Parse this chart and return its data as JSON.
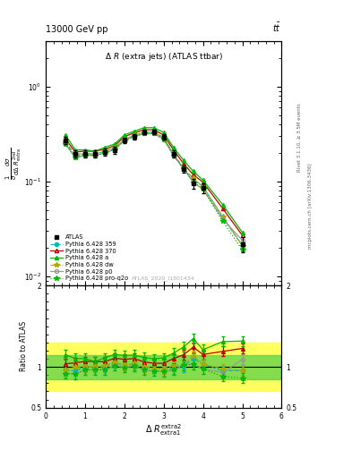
{
  "title_left": "13000 GeV pp",
  "title_right": "tt",
  "plot_title": "Δ R (extra jets) (ATLAS ttbar)",
  "watermark": "ATLAS_2020_I1801434",
  "ylabel_main": "$\\frac{1}{\\sigma}\\frac{d\\sigma}{d\\Delta R_{extra}^{2nd}}$",
  "ylabel_ratio": "Ratio to ATLAS",
  "xlabel": "$\\Delta\\ R^{\\mathrm{extra2}}_{\\mathrm{extra1}}$",
  "xlim": [
    0,
    6
  ],
  "ylim_main": [
    0.008,
    3.0
  ],
  "ylim_ratio": [
    0.5,
    2.0
  ],
  "x_data": [
    0.5,
    0.75,
    1.0,
    1.25,
    1.5,
    1.75,
    2.0,
    2.25,
    2.5,
    2.75,
    3.0,
    3.25,
    3.5,
    3.75,
    4.0,
    4.5,
    5.0
  ],
  "atlas_y": [
    0.27,
    0.195,
    0.195,
    0.195,
    0.205,
    0.215,
    0.27,
    0.295,
    0.33,
    0.335,
    0.295,
    0.195,
    0.135,
    0.095,
    0.085,
    null,
    0.022
  ],
  "atlas_yerr": [
    0.025,
    0.018,
    0.018,
    0.018,
    0.018,
    0.018,
    0.018,
    0.018,
    0.018,
    0.018,
    0.018,
    0.018,
    0.012,
    0.012,
    0.01,
    null,
    0.004
  ],
  "py359_y": [
    0.26,
    0.185,
    0.195,
    0.195,
    0.205,
    0.225,
    0.275,
    0.305,
    0.33,
    0.33,
    0.29,
    0.19,
    0.135,
    0.105,
    0.088,
    0.042,
    0.021
  ],
  "py370_y": [
    0.28,
    0.205,
    0.208,
    0.208,
    0.218,
    0.238,
    0.295,
    0.325,
    0.35,
    0.35,
    0.308,
    0.215,
    0.155,
    0.118,
    0.098,
    0.052,
    0.027
  ],
  "pya_y": [
    0.31,
    0.215,
    0.215,
    0.208,
    0.228,
    0.248,
    0.308,
    0.338,
    0.368,
    0.368,
    0.328,
    0.228,
    0.168,
    0.128,
    0.103,
    0.057,
    0.029
  ],
  "pydw_y": [
    0.26,
    0.195,
    0.195,
    0.195,
    0.208,
    0.228,
    0.275,
    0.308,
    0.33,
    0.33,
    0.288,
    0.198,
    0.138,
    0.108,
    0.088,
    0.043,
    0.021
  ],
  "pyp0_y": [
    0.248,
    0.178,
    0.188,
    0.188,
    0.198,
    0.218,
    0.268,
    0.298,
    0.318,
    0.318,
    0.278,
    0.188,
    0.138,
    0.098,
    0.083,
    0.04,
    0.024
  ],
  "pyproq2o_y": [
    0.248,
    0.178,
    0.188,
    0.188,
    0.198,
    0.218,
    0.268,
    0.298,
    0.318,
    0.318,
    0.278,
    0.188,
    0.138,
    0.098,
    0.083,
    0.038,
    0.019
  ],
  "colors": {
    "atlas": "#000000",
    "py359": "#00bbbb",
    "py370": "#bb0000",
    "pya": "#00bb00",
    "pydw": "#aaaa00",
    "pyp0": "#999999",
    "pyproq2o": "#00bb00"
  },
  "band_yellow_lo": 0.7,
  "band_yellow_hi": 1.3,
  "band_green_lo": 0.85,
  "band_green_hi": 1.15,
  "ratio_py359": [
    0.963,
    0.949,
    1.0,
    1.0,
    1.0,
    1.047,
    1.019,
    1.034,
    1.0,
    0.985,
    0.983,
    0.974,
    1.0,
    1.105,
    1.035,
    0.952,
    0.955
  ],
  "ratio_py370": [
    1.037,
    1.051,
    1.067,
    1.067,
    1.063,
    1.107,
    1.093,
    1.102,
    1.061,
    1.045,
    1.044,
    1.103,
    1.148,
    1.242,
    1.153,
    1.19,
    1.227
  ],
  "ratio_pya": [
    1.148,
    1.103,
    1.103,
    1.067,
    1.112,
    1.153,
    1.141,
    1.146,
    1.115,
    1.099,
    1.112,
    1.169,
    1.244,
    1.347,
    1.212,
    1.31,
    1.318
  ],
  "ratio_pydw": [
    0.963,
    1.0,
    1.0,
    1.0,
    1.015,
    1.06,
    1.019,
    1.044,
    1.0,
    0.985,
    0.976,
    1.015,
    1.022,
    1.137,
    1.035,
    0.976,
    0.955
  ],
  "ratio_pyp0": [
    0.919,
    0.913,
    0.964,
    0.964,
    0.966,
    1.014,
    0.993,
    1.01,
    0.964,
    0.949,
    0.942,
    0.964,
    1.022,
    1.032,
    0.976,
    0.929,
    1.091
  ],
  "ratio_pyproq2o": [
    0.919,
    0.913,
    0.964,
    0.964,
    0.966,
    1.014,
    0.993,
    1.01,
    0.964,
    0.949,
    0.942,
    0.964,
    1.022,
    1.032,
    0.976,
    0.881,
    0.864
  ],
  "ratio_err": 0.06,
  "right_label1": "Rivet 3.1.10, ≥ 3.5M events",
  "right_label2": "mcplots.cern.ch [arXiv:1306.3436]"
}
